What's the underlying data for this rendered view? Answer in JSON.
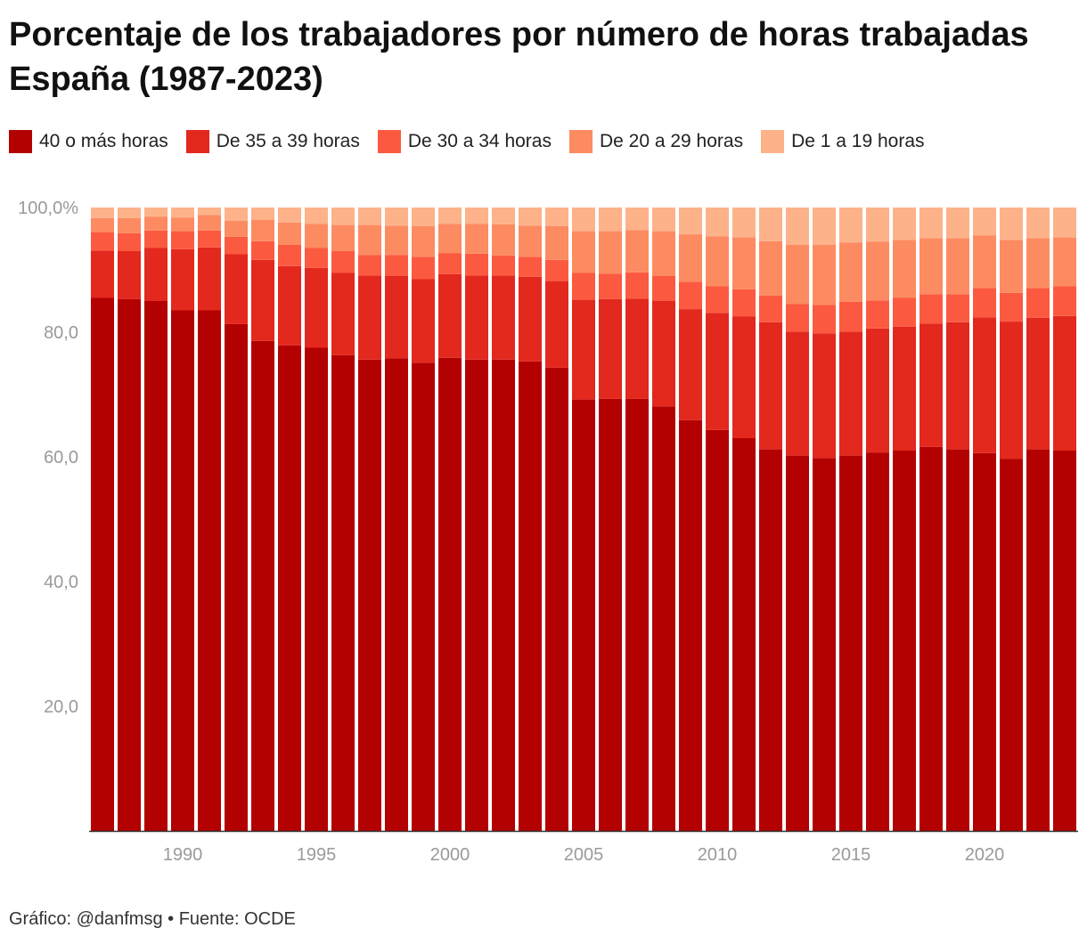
{
  "title_line1": "Porcentaje de los trabajadores por número de horas trabajadas",
  "title_line2": "España (1987-2023)",
  "footer": "Gráfico: @danfmsg • Fuente: OCDE",
  "legend": [
    {
      "label": "40 o más horas",
      "color": "#b30000"
    },
    {
      "label": "De 35 a 39 horas",
      "color": "#e3281e"
    },
    {
      "label": "De 30 a 34 horas",
      "color": "#fc5a40"
    },
    {
      "label": "De 20 a 29 horas",
      "color": "#fd8b62"
    },
    {
      "label": "De 1 a 19 horas",
      "color": "#fdb28a"
    }
  ],
  "chart_data": {
    "type": "bar",
    "stacked": true,
    "ylim": [
      0,
      100
    ],
    "yticks": [
      "20,0",
      "40,0",
      "60,0",
      "80,0",
      "100,0%"
    ],
    "ytick_values": [
      20,
      40,
      60,
      80,
      100
    ],
    "xticks": [
      "1990",
      "1995",
      "2000",
      "2005",
      "2010",
      "2015",
      "2020"
    ],
    "xtick_values": [
      1990,
      1995,
      2000,
      2005,
      2010,
      2015,
      2020
    ],
    "grid": false,
    "legend_position": "top",
    "categories": [
      1987,
      1988,
      1989,
      1990,
      1991,
      1992,
      1993,
      1994,
      1995,
      1996,
      1997,
      1998,
      1999,
      2000,
      2001,
      2002,
      2003,
      2004,
      2005,
      2006,
      2007,
      2008,
      2009,
      2010,
      2011,
      2012,
      2013,
      2014,
      2015,
      2016,
      2017,
      2018,
      2019,
      2020,
      2021,
      2022,
      2023
    ],
    "series": [
      {
        "name": "40 o más horas",
        "color": "#b30000",
        "values": [
          85.5,
          85.3,
          85.0,
          83.5,
          83.5,
          81.3,
          78.6,
          77.9,
          77.5,
          76.3,
          75.6,
          75.8,
          75.1,
          75.9,
          75.6,
          75.6,
          75.3,
          74.3,
          69.2,
          69.3,
          69.3,
          68.1,
          65.9,
          64.3,
          63.0,
          61.2,
          60.2,
          59.8,
          60.2,
          60.7,
          61.0,
          61.6,
          61.2,
          60.6,
          59.7,
          61.2,
          61.0
        ]
      },
      {
        "name": "De 35 a 39 horas",
        "color": "#e3281e",
        "values": [
          7.6,
          7.7,
          8.5,
          9.8,
          10.1,
          11.2,
          13.0,
          12.7,
          12.8,
          13.2,
          13.5,
          13.2,
          13.4,
          13.4,
          13.5,
          13.5,
          13.6,
          13.9,
          16.0,
          16.0,
          16.1,
          16.9,
          17.8,
          18.8,
          19.5,
          20.4,
          19.9,
          20.0,
          19.9,
          19.9,
          19.9,
          19.8,
          20.4,
          21.8,
          22.0,
          21.1,
          21.6
        ]
      },
      {
        "name": "De 30 a 34 horas",
        "color": "#fc5a40",
        "values": [
          2.9,
          2.9,
          2.8,
          2.9,
          2.7,
          2.8,
          3.0,
          3.4,
          3.2,
          3.5,
          3.3,
          3.4,
          3.6,
          3.4,
          3.5,
          3.2,
          3.2,
          3.4,
          4.3,
          4.1,
          4.2,
          4.0,
          4.4,
          4.3,
          4.4,
          4.3,
          4.4,
          4.6,
          4.8,
          4.5,
          4.6,
          4.7,
          4.5,
          4.7,
          4.6,
          4.8,
          4.8
        ]
      },
      {
        "name": "De 20 a 29 horas",
        "color": "#fd8b62",
        "values": [
          2.3,
          2.4,
          2.2,
          2.2,
          2.5,
          2.6,
          3.4,
          3.6,
          3.9,
          4.2,
          4.8,
          4.7,
          4.9,
          4.7,
          4.8,
          5.0,
          5.0,
          5.4,
          6.7,
          6.8,
          6.8,
          7.2,
          7.6,
          8.0,
          8.3,
          8.7,
          9.5,
          9.6,
          9.5,
          9.4,
          9.3,
          9.0,
          9.0,
          8.4,
          8.5,
          8.0,
          7.8
        ]
      },
      {
        "name": "De 1 a 19 horas",
        "color": "#fdb28a",
        "values": [
          1.7,
          1.7,
          1.5,
          1.6,
          1.2,
          2.1,
          2.0,
          2.4,
          2.6,
          2.8,
          2.8,
          2.9,
          3.0,
          2.6,
          2.6,
          2.7,
          2.9,
          3.0,
          3.8,
          3.8,
          3.6,
          3.8,
          4.3,
          4.6,
          4.8,
          5.4,
          6.0,
          6.0,
          5.6,
          5.5,
          5.2,
          4.9,
          4.9,
          4.5,
          5.2,
          4.9,
          4.8
        ]
      }
    ]
  }
}
